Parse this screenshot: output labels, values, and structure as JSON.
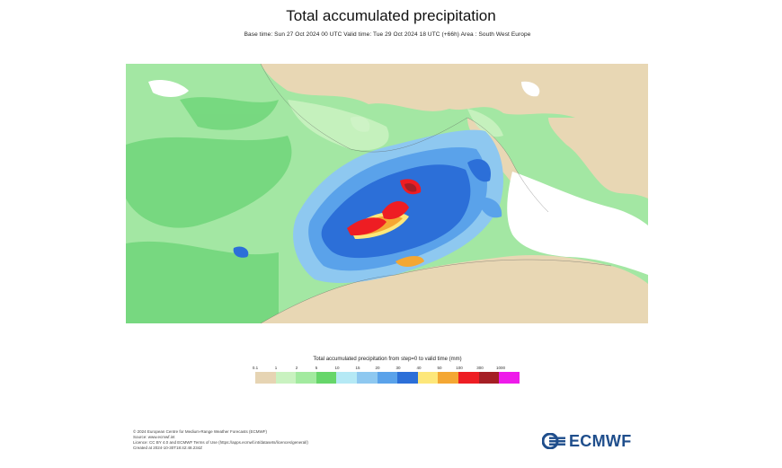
{
  "header": {
    "title": "Total accumulated precipitation",
    "subtitle": "Base time: Sun 27 Oct 2024 00 UTC Valid time: Tue 29 Oct 2024 18 UTC (+66h) Area : South West Europe"
  },
  "legend": {
    "title": "Total accumulated precipitation from step=0 to valid time (mm)",
    "ticks": [
      "0.1",
      "1",
      "2",
      "5",
      "10",
      "15",
      "20",
      "30",
      "40",
      "50",
      "100",
      "300",
      "1000"
    ],
    "colors": [
      "#e6d4b3",
      "#c9f2c0",
      "#a2ea9f",
      "#66d66a",
      "#b5e9f5",
      "#8ec8f0",
      "#5aa2ea",
      "#2c6fd8",
      "#fde77a",
      "#f4a733",
      "#ee1d23",
      "#a51f25",
      "#ee1aea"
    ]
  },
  "map": {
    "land_color": "#e8d7b4",
    "sea_color": "#ffffff",
    "low_precip_color": "#a3e7a3",
    "mid_precip_color": "#70d67a",
    "heavy_precip_color": "#2c6fd8",
    "extreme_precip_color": "#ee1d23"
  },
  "credits": {
    "line1": "© 2024 European Centre for Medium-Range Weather Forecasts (ECMWF)",
    "line2": "Source: www.ecmwf.int",
    "line3": "Licence: CC BY 4.0 and ECMWF Terms of Use (https://apps.ecmwf.int/datasets/licences/general/)",
    "line4": "Created at 2024-10-30T18:42:48.234Z"
  },
  "logo": {
    "text": "ECMWF"
  }
}
